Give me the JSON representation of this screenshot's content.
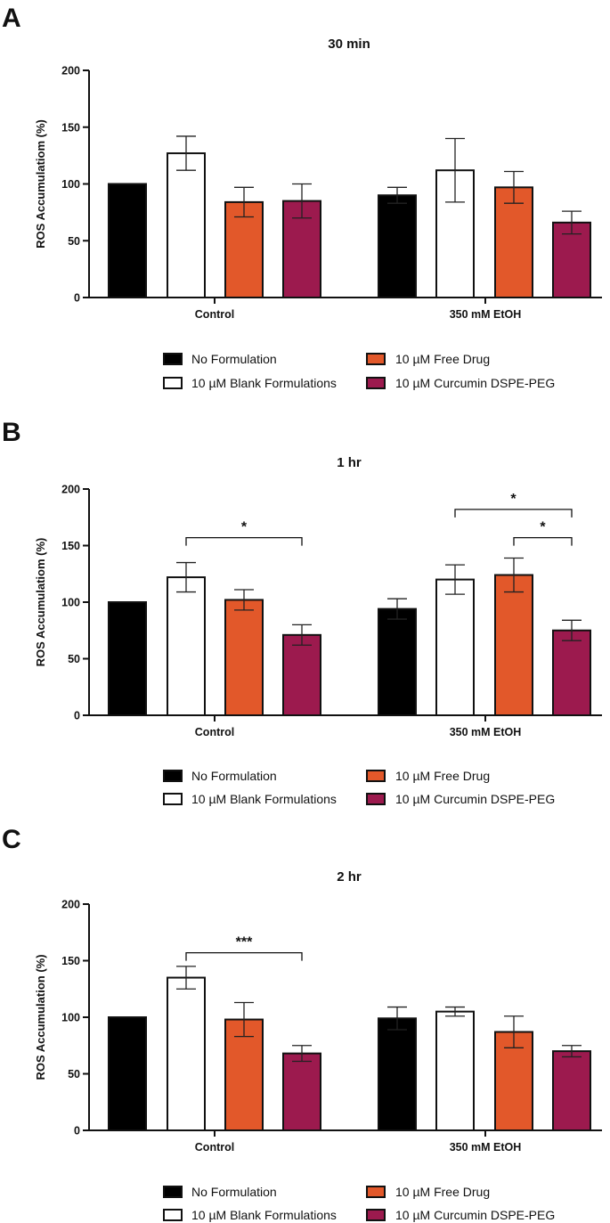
{
  "chart_data": [
    {
      "type": "bar",
      "panel": "A",
      "title": "30 min",
      "xlabel": "",
      "ylabel": "ROS Accumulatiom (%)",
      "ylim": [
        0,
        200
      ],
      "yticks": [
        "0",
        "50",
        "100",
        "150",
        "200"
      ],
      "categories": [
        "Control",
        "350 mM EtOH"
      ],
      "series": [
        {
          "name": "No Formulation",
          "color": "#000000",
          "values": [
            100,
            90
          ],
          "errors": [
            0,
            7
          ]
        },
        {
          "name": "10 µM Blank Formulations",
          "color": "#ffffff",
          "values": [
            127,
            112
          ],
          "errors": [
            15,
            28
          ]
        },
        {
          "name": "10 µM Free Drug",
          "color": "#e2582a",
          "values": [
            84,
            97
          ],
          "errors": [
            13,
            14
          ]
        },
        {
          "name": "10 µM Curcumin DSPE-PEG",
          "color": "#9c1a4e",
          "values": [
            85,
            66
          ],
          "errors": [
            15,
            10
          ]
        }
      ],
      "significance": []
    },
    {
      "type": "bar",
      "panel": "B",
      "title": "1 hr",
      "xlabel": "",
      "ylabel": "ROS Accumulatiom (%)",
      "ylim": [
        0,
        200
      ],
      "yticks": [
        "0",
        "50",
        "100",
        "150",
        "200"
      ],
      "categories": [
        "Control",
        "350 mM EtOH"
      ],
      "series": [
        {
          "name": "No Formulation",
          "color": "#000000",
          "values": [
            100,
            94
          ],
          "errors": [
            0,
            9
          ]
        },
        {
          "name": "10 µM Blank Formulations",
          "color": "#ffffff",
          "values": [
            122,
            120
          ],
          "errors": [
            13,
            13
          ]
        },
        {
          "name": "10 µM Free Drug",
          "color": "#e2582a",
          "values": [
            102,
            124
          ],
          "errors": [
            9,
            15
          ]
        },
        {
          "name": "10 µM Curcumin DSPE-PEG",
          "color": "#9c1a4e",
          "values": [
            71,
            75
          ],
          "errors": [
            9,
            9
          ]
        }
      ],
      "significance": [
        {
          "category": 0,
          "from": 1,
          "to": 3,
          "label": "*",
          "y": 157,
          "level": 0
        },
        {
          "category": 1,
          "from": 2,
          "to": 3,
          "label": "*",
          "y": 157,
          "level": 0
        },
        {
          "category": 1,
          "from": 1,
          "to": 3,
          "label": "*",
          "y": 182,
          "level": 1
        }
      ]
    },
    {
      "type": "bar",
      "panel": "C",
      "title": "2 hr",
      "xlabel": "",
      "ylabel": "ROS Accumulation (%)",
      "ylim": [
        0,
        200
      ],
      "yticks": [
        "0",
        "50",
        "100",
        "150",
        "200"
      ],
      "categories": [
        "Control",
        "350 mM EtOH"
      ],
      "series": [
        {
          "name": "No Formulation",
          "color": "#000000",
          "values": [
            100,
            99
          ],
          "errors": [
            0,
            10
          ]
        },
        {
          "name": "10 µM Blank Formulations",
          "color": "#ffffff",
          "values": [
            135,
            105
          ],
          "errors": [
            10,
            4
          ]
        },
        {
          "name": "10 µM Free Drug",
          "color": "#e2582a",
          "values": [
            98,
            87
          ],
          "errors": [
            15,
            14
          ]
        },
        {
          "name": "10 µM Curcumin DSPE-PEG",
          "color": "#9c1a4e",
          "values": [
            68,
            70
          ],
          "errors": [
            7,
            5
          ]
        }
      ],
      "significance": [
        {
          "category": 0,
          "from": 1,
          "to": 3,
          "label": "***",
          "y": 157,
          "level": 0
        }
      ]
    }
  ]
}
